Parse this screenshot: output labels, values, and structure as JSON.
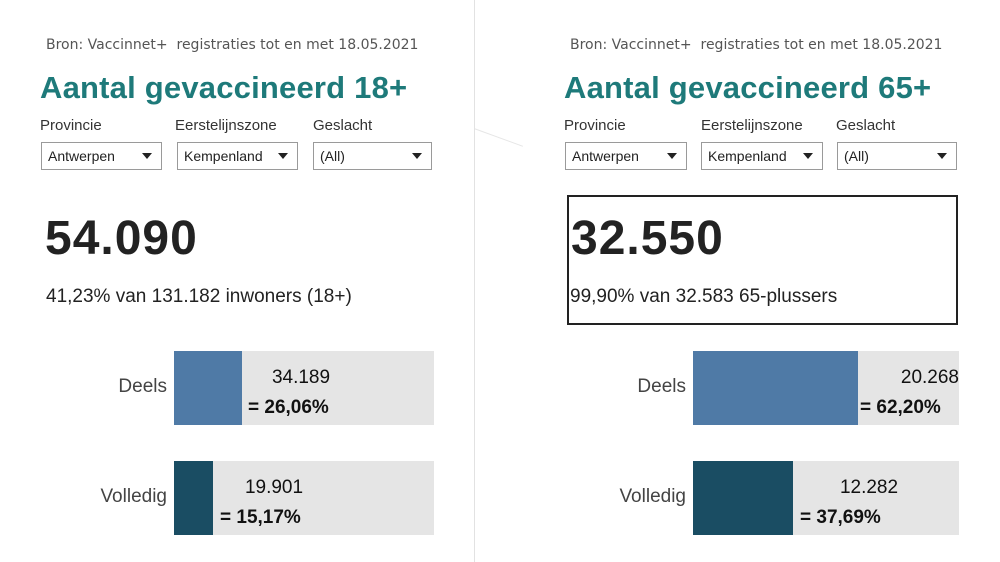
{
  "left": {
    "source": "Bron: Vaccinnet+  registraties tot en met 18.05.2021",
    "title": "Aantal gevaccineerd 18+",
    "filters": [
      {
        "label": "Provincie",
        "value": "Antwerpen"
      },
      {
        "label": "Eerstelijnszone",
        "value": "Kempenland"
      },
      {
        "label": "Geslacht",
        "value": "(All)"
      }
    ],
    "total": "54.090",
    "subline": "41,23% van 131.182 inwoners (18+)",
    "bars": [
      {
        "label": "Deels",
        "count": "34.189",
        "pct_text": "= 26,06%",
        "fraction": 0.2606
      },
      {
        "label": "Volledig",
        "count": "19.901",
        "pct_text": "= 15,17%",
        "fraction": 0.1517
      }
    ]
  },
  "right": {
    "source": "Bron: Vaccinnet+  registraties tot en met 18.05.2021",
    "title": "Aantal gevaccineerd 65+",
    "filters": [
      {
        "label": "Provincie",
        "value": "Antwerpen"
      },
      {
        "label": "Eerstelijnszone",
        "value": "Kempenland"
      },
      {
        "label": "Geslacht",
        "value": "(All)"
      }
    ],
    "total": "32.550",
    "subline": "99,90% van 32.583 65-plussers",
    "bars": [
      {
        "label": "Deels",
        "count": "20.268",
        "pct_text": "= 62,20%",
        "fraction": 0.622
      },
      {
        "label": "Volledig",
        "count": "12.282",
        "pct_text": "= 37,69%",
        "fraction": 0.3769
      }
    ]
  },
  "colors": {
    "title": "#1e7a7a",
    "partial_bar": "#4f7aa6",
    "full_bar": "#1a4d63",
    "track": "#e5e5e5"
  },
  "icons": {
    "dropdown": "caret-down-icon"
  }
}
